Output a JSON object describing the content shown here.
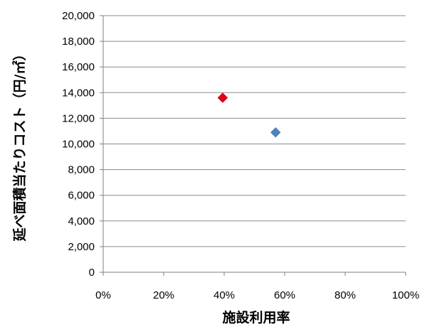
{
  "chart_data": {
    "type": "scatter",
    "title": "",
    "xlabel": "施設利用率",
    "ylabel": "延べ面積当たりコスト（円/㎡）",
    "xlim": [
      0,
      1
    ],
    "ylim": [
      0,
      20000
    ],
    "x_ticks": [
      "0%",
      "20%",
      "40%",
      "60%",
      "80%",
      "100%"
    ],
    "y_ticks": [
      "0",
      "2,000",
      "4,000",
      "6,000",
      "8,000",
      "10,000",
      "12,000",
      "14,000",
      "16,000",
      "18,000",
      "20,000"
    ],
    "grid": true,
    "legend": "",
    "points": [
      {
        "x": 0.395,
        "y": 13600,
        "color": "#e0001a",
        "marker": "diamond"
      },
      {
        "x": 0.57,
        "y": 10900,
        "color": "#4f81bd",
        "marker": "diamond"
      }
    ]
  }
}
